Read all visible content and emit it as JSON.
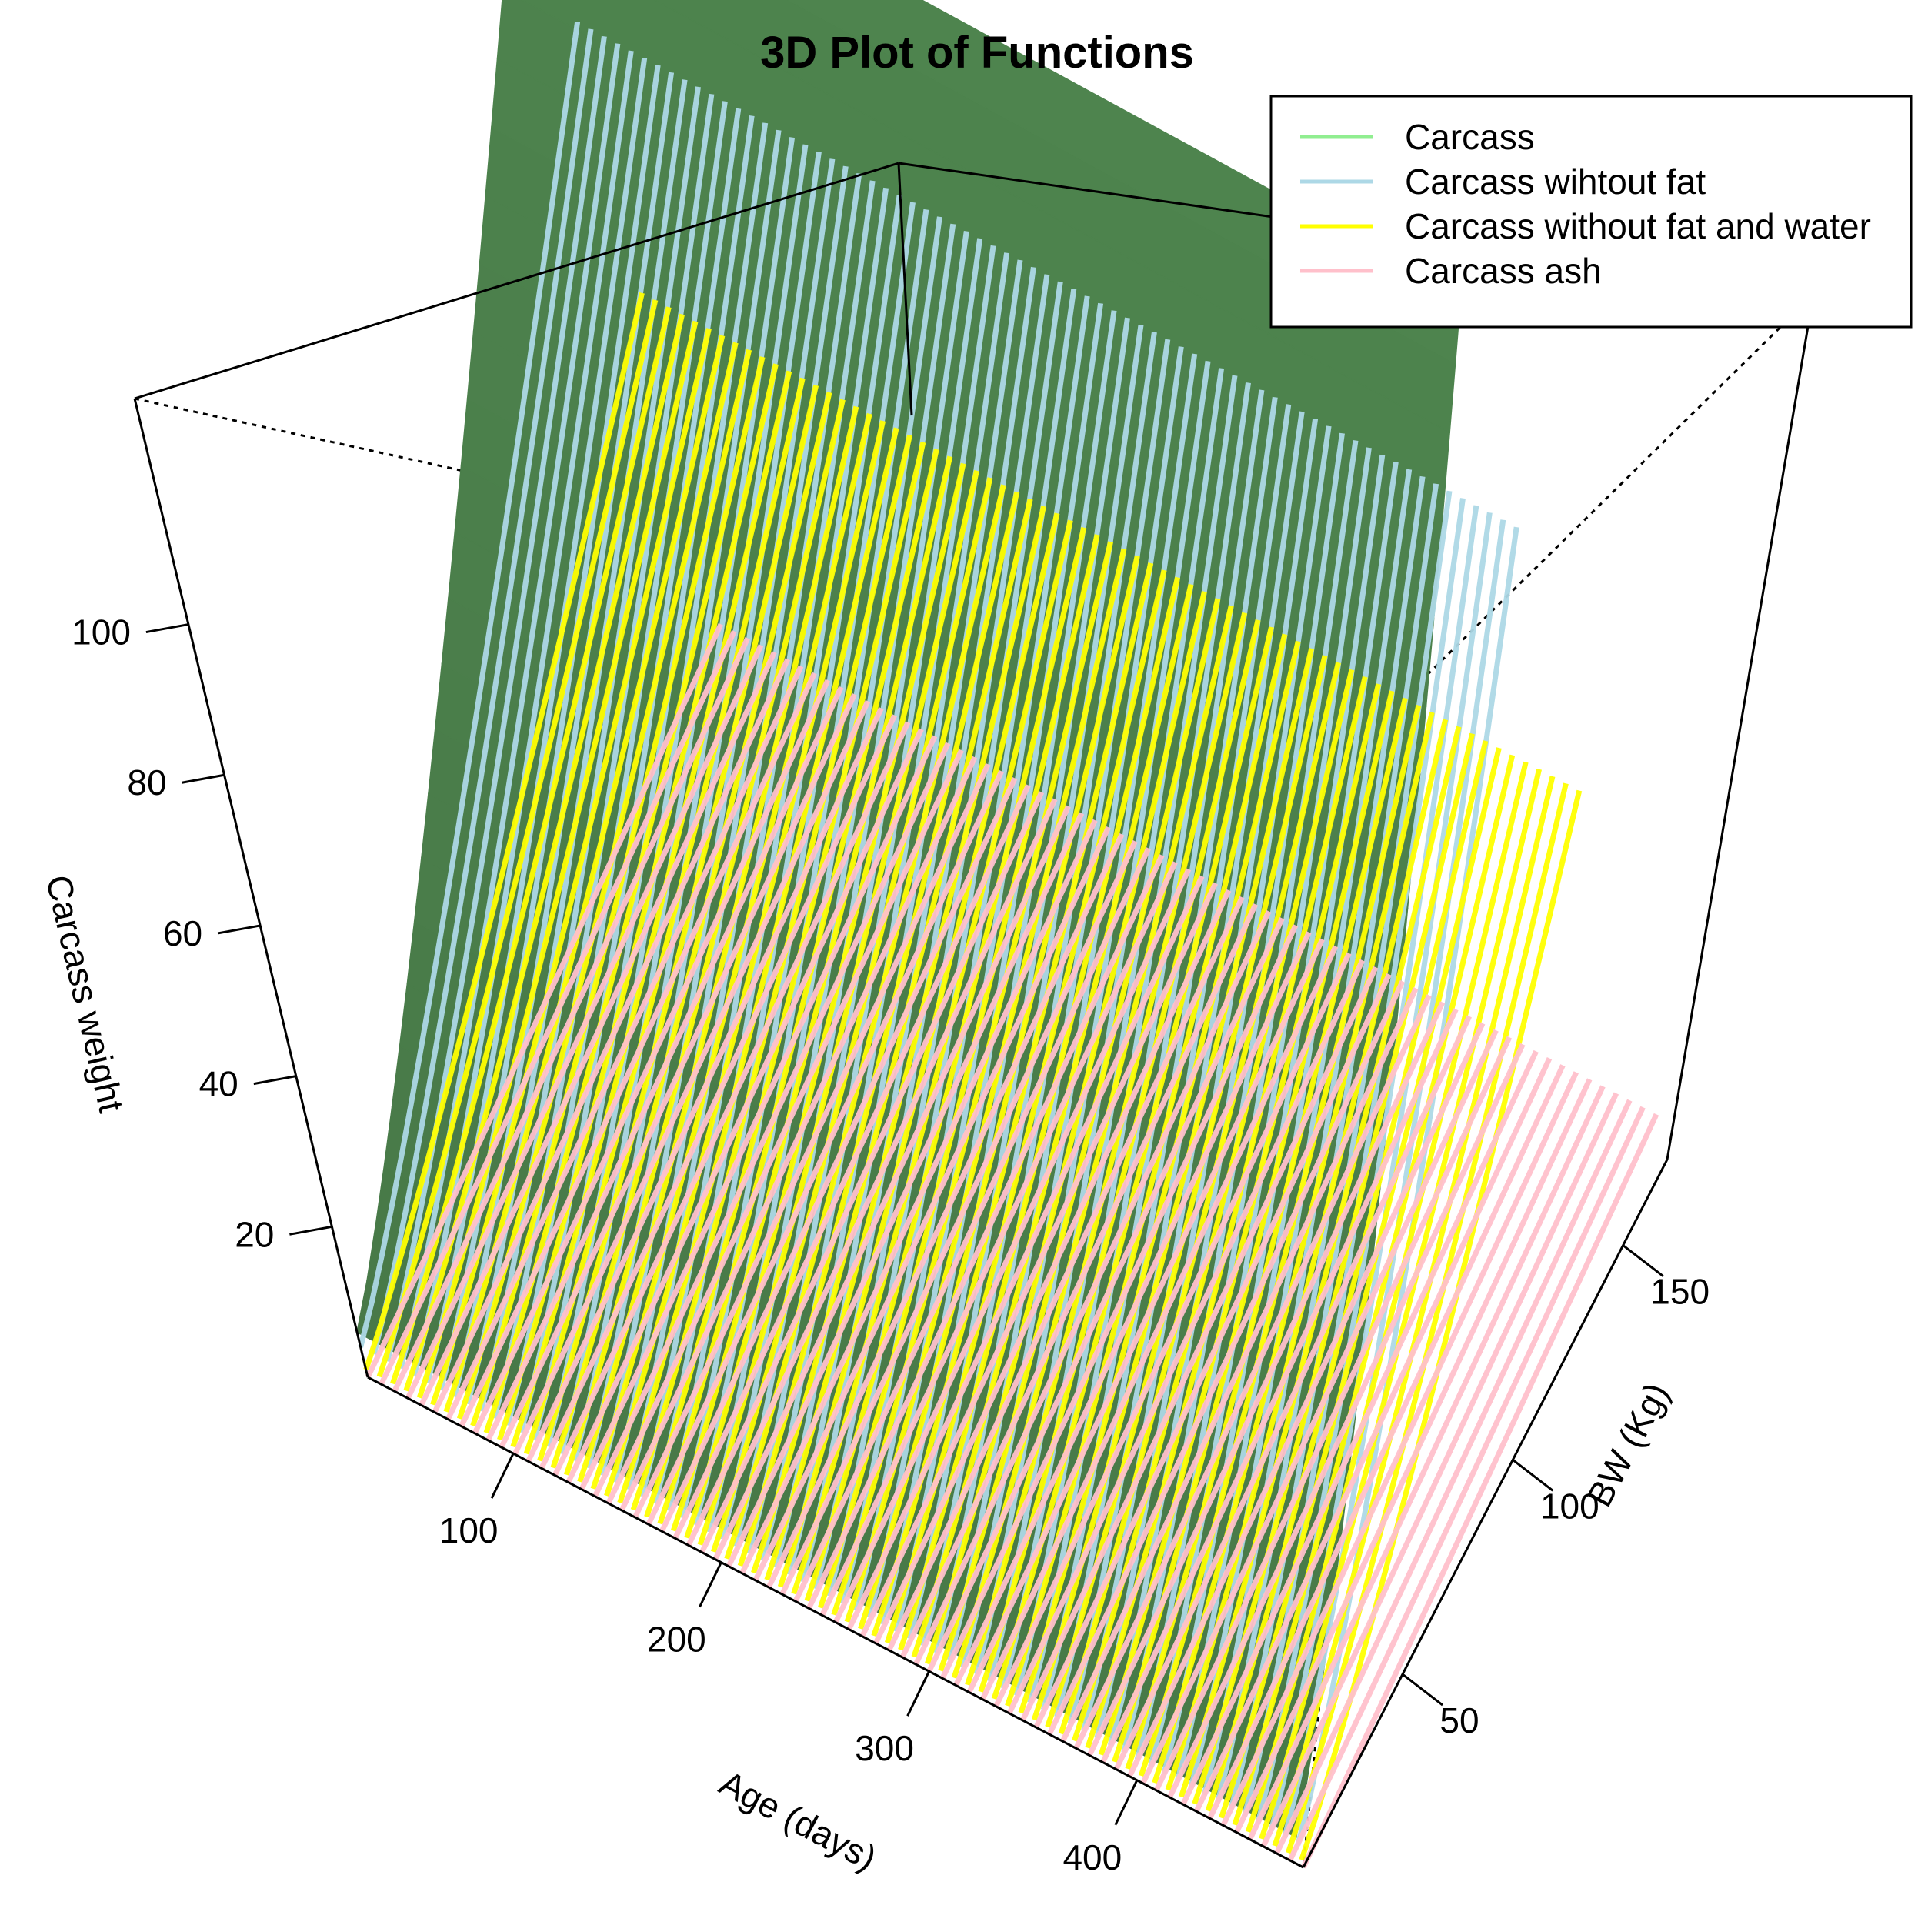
{
  "chart_data": {
    "type": "surface3d",
    "title": "3D Plot of Functions",
    "xlabel": "Age (days)",
    "ylabel": "BW (Kg)",
    "zlabel": "Carcass weight",
    "x_ticks": [
      100,
      200,
      300,
      400
    ],
    "y_ticks": [
      50,
      100,
      150
    ],
    "z_ticks": [
      20,
      40,
      60,
      80,
      100
    ],
    "xlim": [
      30,
      480
    ],
    "ylim": [
      5,
      170
    ],
    "zlim": [
      0,
      130
    ],
    "legend_position": "top-right",
    "series": [
      {
        "name": "Carcass",
        "color": "#4e844e",
        "legend_color": "#90ee90",
        "style": "solid-surface",
        "corner_values": {
          "at_xmin_ymin": 6,
          "at_xmax_ymin": 4,
          "at_xmin_ymax": 118,
          "at_xmax_ymax": 115
        }
      },
      {
        "name": "Carcass wihtout fat",
        "color": "#add8e6",
        "legend_color": "#add8e6",
        "style": "striped-surface",
        "corner_values": {
          "at_xmin_ymin": 4,
          "at_xmax_ymin": 3,
          "at_xmin_ymax": 86,
          "at_xmax_ymax": 84
        }
      },
      {
        "name": "Carcass without fat and water",
        "color": "#ffff00",
        "legend_color": "#ffff00",
        "style": "striped-surface",
        "corner_values": {
          "at_xmin_ymin": 1,
          "at_xmax_ymin": 1,
          "at_xmin_ymax": 50,
          "at_xmax_ymax": 49
        }
      },
      {
        "name": "Carcass ash",
        "color": "#ffc0cb",
        "legend_color": "#ffc0cb",
        "style": "striped-surface",
        "corner_values": {
          "at_xmin_ymin": 0,
          "at_xmax_ymin": 0,
          "at_xmin_ymax": 6,
          "at_xmax_ymax": 6
        }
      }
    ]
  }
}
